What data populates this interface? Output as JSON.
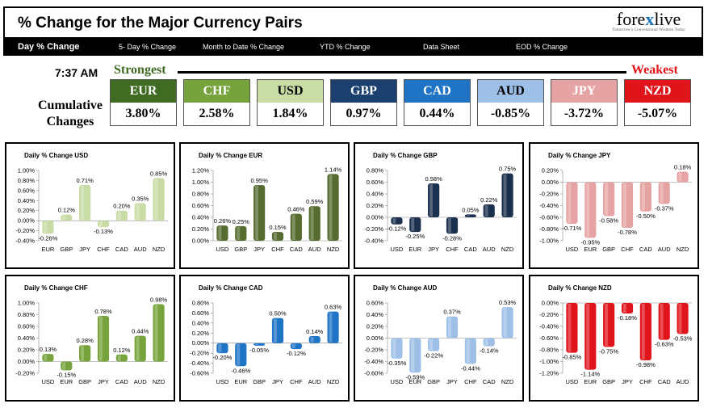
{
  "header": {
    "title": "% Change for the Major Currency Pairs",
    "logo": {
      "brand": "forexlive",
      "tagline": "Tomorrow's Conventional Wisdom Today"
    }
  },
  "nav": {
    "items": [
      {
        "label": "Day % Change",
        "active": true
      },
      {
        "label": "5- Day % Change",
        "active": false
      },
      {
        "label": "Month to Date % Change",
        "active": false
      },
      {
        "label": "YTD % Change",
        "active": false
      },
      {
        "label": "Data Sheet",
        "active": false
      },
      {
        "label": "EOD % Change",
        "active": false
      }
    ]
  },
  "summary": {
    "time": "7:37 AM",
    "strongest_label": "Strongest",
    "weakest_label": "Weakest",
    "cumulative_label": "Cumulative Changes",
    "currencies": [
      {
        "name": "EUR",
        "value": "3.80%",
        "color": "#3f6b22",
        "text_color": "#ffffff"
      },
      {
        "name": "CHF",
        "value": "2.58%",
        "color": "#76a33b",
        "text_color": "#ffffff"
      },
      {
        "name": "USD",
        "value": "1.84%",
        "color": "#c9dca6",
        "text_color": "#000000"
      },
      {
        "name": "GBP",
        "value": "0.97%",
        "color": "#1b3f6e",
        "text_color": "#ffffff"
      },
      {
        "name": "CAD",
        "value": "0.44%",
        "color": "#1f74c6",
        "text_color": "#ffffff"
      },
      {
        "name": "AUD",
        "value": "-0.85%",
        "color": "#9ec0e6",
        "text_color": "#000000"
      },
      {
        "name": "JPY",
        "value": "-3.72%",
        "color": "#e6a3a3",
        "text_color": "#ffffff"
      },
      {
        "name": "NZD",
        "value": "-5.07%",
        "color": "#e0151b",
        "text_color": "#ffffff"
      }
    ]
  },
  "chart_data": [
    {
      "type": "bar",
      "title": "Daily % Change USD",
      "categories": [
        "EUR",
        "GBP",
        "JPY",
        "CHF",
        "CAD",
        "AUD",
        "NZD"
      ],
      "values": [
        -0.26,
        0.12,
        0.71,
        -0.13,
        0.2,
        0.35,
        0.85
      ],
      "labels": [
        "-0.26%",
        "0.12%",
        "0.71%",
        "-0.13%",
        "0.20%",
        "0.35%",
        "0.85%"
      ],
      "yticks": [
        "1.00%",
        "0.80%",
        "0.60%",
        "0.40%",
        "0.20%",
        "0.00%",
        "-0.20%",
        "-0.40%"
      ],
      "ylim": [
        -0.4,
        1.0
      ],
      "color": "#c9dca6"
    },
    {
      "type": "bar",
      "title": "Daily % Change EUR",
      "categories": [
        "USD",
        "GBP",
        "JPY",
        "CHF",
        "CAD",
        "AUD",
        "NZD"
      ],
      "values": [
        0.26,
        0.25,
        0.95,
        0.15,
        0.46,
        0.59,
        1.14
      ],
      "labels": [
        "0.26%",
        "0.25%",
        "0.95%",
        "0.15%",
        "0.46%",
        "0.59%",
        "1.14%"
      ],
      "yticks": [
        "1.20%",
        "1.00%",
        "0.80%",
        "0.60%",
        "0.40%",
        "0.20%",
        "0.00%"
      ],
      "ylim": [
        0.0,
        1.2
      ],
      "color": "#556b2f"
    },
    {
      "type": "bar",
      "title": "Daily % Change GBP",
      "categories": [
        "USD",
        "EUR",
        "JPY",
        "CHF",
        "CAD",
        "AUD",
        "NZD"
      ],
      "values": [
        -0.12,
        -0.25,
        0.58,
        -0.28,
        0.05,
        0.22,
        0.75
      ],
      "labels": [
        "-0.12%",
        "-0.25%",
        "0.58%",
        "-0.28%",
        "0.05%",
        "0.22%",
        "0.75%"
      ],
      "yticks": [
        "0.80%",
        "0.60%",
        "0.40%",
        "0.20%",
        "0.00%",
        "-0.20%",
        "-0.40%"
      ],
      "ylim": [
        -0.4,
        0.8
      ],
      "color": "#1b2f4e"
    },
    {
      "type": "bar",
      "title": "Daily % Change JPY",
      "categories": [
        "USD",
        "EUR",
        "GBP",
        "CHF",
        "CAD",
        "AUD",
        "NZD"
      ],
      "values": [
        -0.71,
        -0.95,
        -0.58,
        -0.78,
        -0.5,
        -0.37,
        0.18
      ],
      "labels": [
        "-0.71%",
        "-0.95%",
        "-0.58%",
        "-0.78%",
        "-0.50%",
        "-0.37%",
        "0.18%"
      ],
      "yticks": [
        "0.20%",
        "0.00%",
        "-0.20%",
        "-0.40%",
        "-0.60%",
        "-0.80%",
        "-1.00%"
      ],
      "ylim": [
        -1.0,
        0.2
      ],
      "color": "#e6a3a3"
    },
    {
      "type": "bar",
      "title": "Daily % Change CHF",
      "categories": [
        "USD",
        "EUR",
        "GBP",
        "JPY",
        "CAD",
        "AUD",
        "NZD"
      ],
      "values": [
        0.13,
        -0.15,
        0.28,
        0.78,
        0.12,
        0.44,
        0.98
      ],
      "labels": [
        "0.13%",
        "-0.15%",
        "0.28%",
        "0.78%",
        "0.12%",
        "0.44%",
        "0.98%"
      ],
      "yticks": [
        "1.00%",
        "0.80%",
        "0.60%",
        "0.40%",
        "0.20%",
        "0.00%",
        "-0.20%"
      ],
      "ylim": [
        -0.2,
        1.0
      ],
      "color": "#76a33b"
    },
    {
      "type": "bar",
      "title": "Daily % Change CAD",
      "categories": [
        "USD",
        "EUR",
        "GBP",
        "JPY",
        "CHF",
        "AUD",
        "NZD"
      ],
      "values": [
        -0.2,
        -0.46,
        -0.05,
        0.5,
        -0.12,
        0.14,
        0.63
      ],
      "labels": [
        "-0.20%",
        "-0.46%",
        "-0.05%",
        "0.50%",
        "-0.12%",
        "0.14%",
        "0.63%"
      ],
      "yticks": [
        "0.80%",
        "0.60%",
        "0.40%",
        "0.20%",
        "0.00%",
        "-0.20%",
        "-0.40%",
        "-0.60%"
      ],
      "ylim": [
        -0.6,
        0.8
      ],
      "color": "#1f74c6"
    },
    {
      "type": "bar",
      "title": "Daily % Change AUD",
      "categories": [
        "USD",
        "EUR",
        "GBP",
        "JPY",
        "CHF",
        "CAD",
        "NZD"
      ],
      "values": [
        -0.35,
        -0.59,
        -0.22,
        0.37,
        -0.44,
        -0.14,
        0.53
      ],
      "labels": [
        "-0.35%",
        "-0.59%",
        "-0.22%",
        "0.37%",
        "-0.44%",
        "-0.14%",
        "0.53%"
      ],
      "yticks": [
        "0.60%",
        "0.40%",
        "0.20%",
        "0.00%",
        "-0.20%",
        "-0.40%",
        "-0.60%"
      ],
      "ylim": [
        -0.6,
        0.6
      ],
      "color": "#9ec0e6"
    },
    {
      "type": "bar",
      "title": "Daily % Change NZD",
      "categories": [
        "USD",
        "EUR",
        "GBP",
        "JPY",
        "CHF",
        "CAD",
        "AUD"
      ],
      "values": [
        -0.85,
        -1.14,
        -0.75,
        -0.18,
        -0.98,
        -0.63,
        -0.53
      ],
      "labels": [
        "-0.85%",
        "-1.14%",
        "-0.75%",
        "-0.18%",
        "-0.98%",
        "-0.63%",
        "-0.53%"
      ],
      "yticks": [
        "0.00%",
        "-0.20%",
        "-0.40%",
        "-0.60%",
        "-0.80%",
        "-1.00%",
        "-1.20%"
      ],
      "ylim": [
        -1.2,
        0.0
      ],
      "color": "#e0151b"
    }
  ]
}
